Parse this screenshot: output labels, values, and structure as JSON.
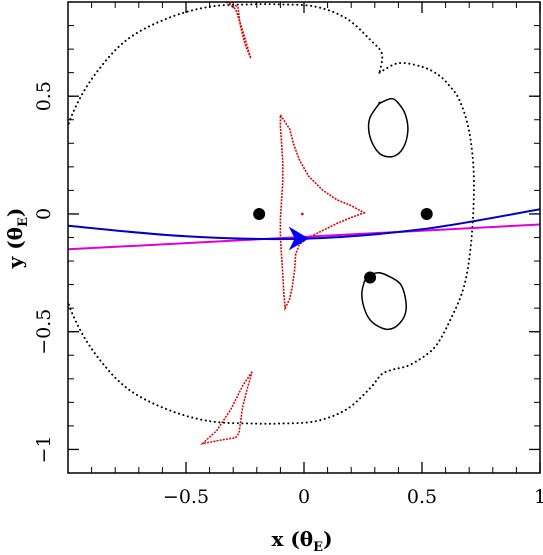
{
  "chart_data": {
    "type": "line",
    "title": "",
    "xlabel": {
      "main": "x (θ",
      "sub": "E",
      "close": ")"
    },
    "ylabel": {
      "main": "y (θ",
      "sub": "E",
      "close": ")"
    },
    "xlim": [
      -1.0,
      1.0
    ],
    "ylim": [
      -1.1,
      0.9
    ],
    "xticks": [
      -0.5,
      0,
      0.5,
      1
    ],
    "xtick_labels": [
      "−0.5",
      "0",
      "0.5",
      "1"
    ],
    "yticks": [
      -1,
      -0.5,
      0,
      0.5
    ],
    "ytick_labels": [
      "−1",
      "−0.5",
      "0",
      "0.5"
    ],
    "grid": false,
    "colors": {
      "critical_curve": "#000000",
      "caustic": "#dd0000",
      "trajectory": "#0000cc",
      "trajectory_alt": "#dd00dd",
      "arrow": "#0000ff",
      "lens": "#000000"
    },
    "lenses": [
      {
        "x": -0.19,
        "y": 0.0
      },
      {
        "x": 0.52,
        "y": 0.0
      },
      {
        "x": 0.28,
        "y": -0.27
      }
    ],
    "source_trajectory": {
      "points": [
        [
          -1.0,
          -0.05
        ],
        [
          -0.5,
          -0.095
        ],
        [
          0.0,
          -0.105
        ],
        [
          0.5,
          -0.065
        ],
        [
          1.0,
          0.02
        ]
      ]
    },
    "source_trajectory_alt": {
      "points": [
        [
          -1.0,
          -0.15
        ],
        [
          1.0,
          -0.045
        ]
      ]
    },
    "direction_arrow": {
      "x": 0.02,
      "y": -0.104
    },
    "outer_critical_curve": [
      [
        0.32,
        0.6
      ],
      [
        0.4,
        0.64
      ],
      [
        0.5,
        0.625
      ],
      [
        0.57,
        0.59
      ],
      [
        0.62,
        0.54
      ],
      [
        0.66,
        0.48
      ],
      [
        0.7,
        0.35
      ],
      [
        0.72,
        0.15
      ],
      [
        0.71,
        -0.1
      ],
      [
        0.68,
        -0.3
      ],
      [
        0.62,
        -0.45
      ],
      [
        0.55,
        -0.57
      ],
      [
        0.45,
        -0.64
      ],
      [
        0.38,
        -0.66
      ],
      [
        0.33,
        -0.68
      ],
      [
        0.28,
        -0.74
      ],
      [
        0.18,
        -0.83
      ],
      [
        0.05,
        -0.88
      ],
      [
        -0.1,
        -0.89
      ],
      [
        -0.22,
        -0.89
      ],
      [
        -0.4,
        -0.88
      ],
      [
        -0.58,
        -0.83
      ],
      [
        -0.75,
        -0.74
      ],
      [
        -0.88,
        -0.6
      ],
      [
        -0.97,
        -0.45
      ],
      [
        -1.02,
        -0.3
      ],
      [
        -1.05,
        -0.1
      ],
      [
        -1.05,
        0.1
      ],
      [
        -1.02,
        0.3
      ],
      [
        -0.97,
        0.45
      ],
      [
        -0.88,
        0.6
      ],
      [
        -0.75,
        0.74
      ],
      [
        -0.58,
        0.83
      ],
      [
        -0.4,
        0.88
      ],
      [
        -0.22,
        0.89
      ],
      [
        -0.1,
        0.89
      ],
      [
        0.05,
        0.88
      ],
      [
        0.18,
        0.83
      ],
      [
        0.28,
        0.74
      ],
      [
        0.33,
        0.68
      ],
      [
        0.32,
        0.6
      ]
    ],
    "inner_critical_curve_top": [
      [
        0.32,
        0.47
      ],
      [
        0.37,
        0.49
      ],
      [
        0.4,
        0.47
      ],
      [
        0.43,
        0.42
      ],
      [
        0.44,
        0.35
      ],
      [
        0.42,
        0.28
      ],
      [
        0.38,
        0.245
      ],
      [
        0.33,
        0.25
      ],
      [
        0.295,
        0.29
      ],
      [
        0.275,
        0.35
      ],
      [
        0.28,
        0.41
      ],
      [
        0.32,
        0.47
      ]
    ],
    "inner_critical_curve_bottom": [
      [
        0.27,
        -0.26
      ],
      [
        0.32,
        -0.25
      ],
      [
        0.37,
        -0.27
      ],
      [
        0.41,
        -0.3
      ],
      [
        0.43,
        -0.36
      ],
      [
        0.43,
        -0.42
      ],
      [
        0.4,
        -0.47
      ],
      [
        0.36,
        -0.49
      ],
      [
        0.32,
        -0.48
      ],
      [
        0.28,
        -0.45
      ],
      [
        0.255,
        -0.4
      ],
      [
        0.245,
        -0.34
      ],
      [
        0.255,
        -0.29
      ],
      [
        0.27,
        -0.26
      ]
    ],
    "central_caustic": [
      [
        -0.1,
        0.42
      ],
      [
        -0.06,
        0.36
      ],
      [
        -0.045,
        0.3
      ],
      [
        -0.02,
        0.23
      ],
      [
        0.02,
        0.16
      ],
      [
        0.08,
        0.1
      ],
      [
        0.14,
        0.06
      ],
      [
        0.2,
        0.035
      ],
      [
        0.255,
        0.005
      ],
      [
        0.2,
        -0.015
      ],
      [
        0.14,
        -0.04
      ],
      [
        0.08,
        -0.07
      ],
      [
        0.02,
        -0.1
      ],
      [
        -0.02,
        -0.13
      ],
      [
        -0.035,
        -0.17
      ],
      [
        -0.04,
        -0.24
      ],
      [
        -0.05,
        -0.31
      ],
      [
        -0.06,
        -0.36
      ],
      [
        -0.08,
        -0.4
      ],
      [
        -0.085,
        -0.34
      ],
      [
        -0.09,
        -0.26
      ],
      [
        -0.095,
        -0.18
      ],
      [
        -0.1,
        -0.1
      ],
      [
        -0.1,
        -0.02
      ],
      [
        -0.095,
        0.06
      ],
      [
        -0.09,
        0.14
      ],
      [
        -0.09,
        0.22
      ],
      [
        -0.095,
        0.3
      ],
      [
        -0.1,
        0.37
      ],
      [
        -0.1,
        0.42
      ]
    ],
    "top_caustic": [
      [
        -0.33,
        0.9
      ],
      [
        -0.29,
        0.87
      ],
      [
        -0.26,
        0.78
      ],
      [
        -0.225,
        0.66
      ],
      [
        -0.25,
        0.72
      ],
      [
        -0.27,
        0.8
      ],
      [
        -0.28,
        0.88
      ],
      [
        -0.33,
        0.9
      ]
    ],
    "bottom_caustic": [
      [
        -0.22,
        -0.67
      ],
      [
        -0.26,
        -0.73
      ],
      [
        -0.31,
        -0.83
      ],
      [
        -0.37,
        -0.92
      ],
      [
        -0.43,
        -0.975
      ],
      [
        -0.35,
        -0.96
      ],
      [
        -0.29,
        -0.95
      ],
      [
        -0.275,
        -0.93
      ],
      [
        -0.27,
        -0.89
      ],
      [
        -0.26,
        -0.82
      ],
      [
        -0.24,
        -0.74
      ],
      [
        -0.22,
        -0.67
      ]
    ],
    "caustic_speck": {
      "x": -0.007,
      "y": 0.0
    }
  }
}
